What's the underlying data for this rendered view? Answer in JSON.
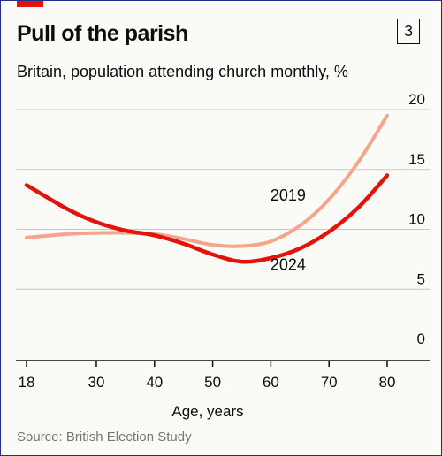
{
  "header": {
    "title": "Pull of the parish",
    "chart_number": "3",
    "subtitle": "Britain, population attending church monthly, %"
  },
  "source": "Source: British Election Study",
  "colors": {
    "series_2024": "#e3120b",
    "series_2019": "#f4a58a",
    "accent_tab": "#e3120b",
    "grid": "#c8c8c8",
    "frame": "#1f2e8c"
  },
  "chart_data": {
    "type": "line",
    "xlabel": "Age, years",
    "ylabel": "",
    "xlim": [
      18,
      80
    ],
    "ylim": [
      0,
      20
    ],
    "x_ticks": [
      "18",
      "30",
      "40",
      "50",
      "60",
      "70",
      "80"
    ],
    "y_ticks": [
      "0",
      "5",
      "10",
      "15",
      "20"
    ],
    "grid": true,
    "series": [
      {
        "name": "2019",
        "x": [
          18,
          25,
          30,
          35,
          40,
          45,
          50,
          55,
          60,
          65,
          70,
          75,
          80
        ],
        "values": [
          9.3,
          9.6,
          9.7,
          9.7,
          9.6,
          9.2,
          8.7,
          8.6,
          9.0,
          10.3,
          12.5,
          15.6,
          19.5
        ]
      },
      {
        "name": "2024",
        "x": [
          18,
          25,
          30,
          35,
          40,
          45,
          50,
          55,
          60,
          65,
          70,
          75,
          80
        ],
        "values": [
          13.7,
          11.7,
          10.6,
          9.9,
          9.5,
          8.8,
          7.9,
          7.3,
          7.6,
          8.4,
          9.8,
          11.8,
          14.5
        ]
      }
    ]
  }
}
